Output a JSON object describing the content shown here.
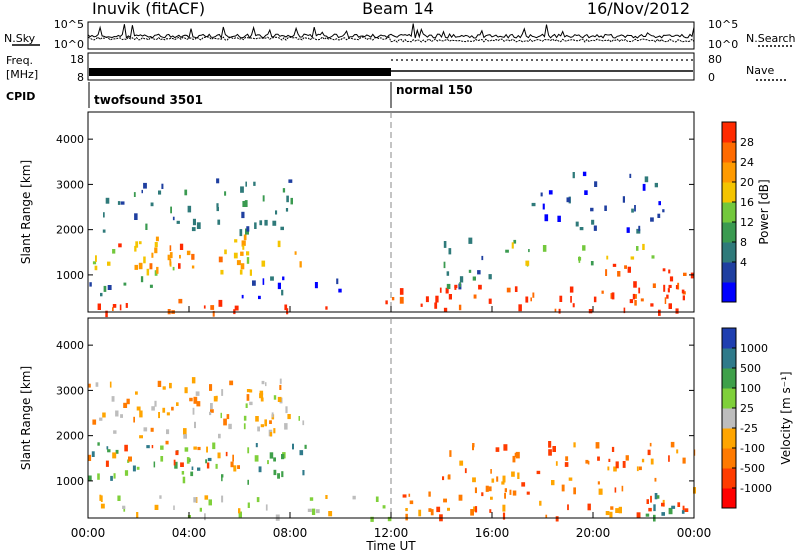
{
  "header": {
    "station": "Inuvik (fitACF)",
    "beam": "Beam 14",
    "date": "16/Nov/2012"
  },
  "top_panels": {
    "nsky_label": "N.Sky",
    "nsky_ticks": [
      "10^5",
      "10^0"
    ],
    "nsearch_label": "N.Search",
    "nsearch_ticks": [
      "10^5",
      "10^0"
    ],
    "freq_label_1": "Freq.",
    "freq_label_2": "[MHz]",
    "freq_ticks": [
      "18",
      "8"
    ],
    "nave_label": "Nave",
    "nave_ticks": [
      "80",
      "0"
    ],
    "cpid_label": "CPID",
    "cpid_segments": [
      {
        "label": "twofsound 3501",
        "start_hour": 0
      },
      {
        "label": "normal 150",
        "start_hour": 12
      }
    ]
  },
  "time_axis": {
    "label": "Time UT",
    "ticks": [
      "00:00",
      "04:00",
      "08:00",
      "12:00",
      "16:00",
      "20:00",
      "00:00"
    ]
  },
  "chart_data": [
    {
      "type": "heatmap",
      "title": "",
      "xlabel": "Time UT",
      "ylabel": "Slant Range [km]",
      "xlim": [
        0,
        24
      ],
      "ylim": [
        180,
        4600
      ],
      "yticks": [
        "1000",
        "2000",
        "3000",
        "4000"
      ],
      "colorbar": {
        "label": "Power [dB]",
        "ticks": [
          "28",
          "24",
          "20",
          "16",
          "12",
          "8",
          "4"
        ],
        "colors": [
          "#0000ff",
          "#1f3fa0",
          "#2f7a7a",
          "#3a9a50",
          "#73c83c",
          "#f4c400",
          "#ff9a00",
          "#ff6a00",
          "#ff2a00"
        ]
      },
      "regions": [
        {
          "t0": 0.0,
          "t1": 8.6,
          "r0": 1100,
          "r1": 1900,
          "level": 5
        },
        {
          "t0": 1.0,
          "t1": 5.5,
          "r0": 1200,
          "r1": 1700,
          "level": 7
        },
        {
          "t0": 0.0,
          "t1": 12.0,
          "r0": 200,
          "r1": 500,
          "level": 8
        },
        {
          "t0": 0.0,
          "t1": 3.0,
          "r0": 600,
          "r1": 1000,
          "level": 2
        },
        {
          "t0": 0.5,
          "t1": 8.2,
          "r0": 2000,
          "r1": 3200,
          "level": 2
        },
        {
          "t0": 6.0,
          "t1": 10.0,
          "r0": 500,
          "r1": 1000,
          "level": 1
        },
        {
          "t0": 12.0,
          "t1": 24.0,
          "r0": 200,
          "r1": 800,
          "level": 8
        },
        {
          "t0": 16.5,
          "t1": 22.5,
          "r0": 1300,
          "r1": 1800,
          "level": 4
        },
        {
          "t0": 20.0,
          "t1": 24.0,
          "r0": 500,
          "r1": 1250,
          "level": 8
        },
        {
          "t0": 17.5,
          "t1": 23.0,
          "r0": 2000,
          "r1": 3300,
          "level": 1
        },
        {
          "t0": 14.0,
          "t1": 16.0,
          "r0": 800,
          "r1": 1900,
          "level": 2
        }
      ]
    },
    {
      "type": "heatmap",
      "title": "",
      "xlabel": "Time UT",
      "ylabel": "Slant Range [km]",
      "xlim": [
        0,
        24
      ],
      "ylim": [
        180,
        4600
      ],
      "yticks": [
        "1000",
        "2000",
        "3000",
        "4000"
      ],
      "colorbar": {
        "label": "Velocity [m s⁻¹]",
        "ticks": [
          "1000",
          "500",
          "100",
          "25",
          "-25",
          "-100",
          "-500",
          "-1000"
        ],
        "colors": [
          "#ff0000",
          "#ff3c00",
          "#ff7a00",
          "#ffa500",
          "#bdbdbd",
          "#7fd03a",
          "#3fa04a",
          "#2f7a8a",
          "#1f3fb0"
        ]
      },
      "regions": [
        {
          "t0": 0.0,
          "t1": 8.6,
          "r0": 1000,
          "r1": 1900,
          "level": 6
        },
        {
          "t0": 0.0,
          "t1": 6.0,
          "r0": 1300,
          "r1": 1900,
          "level": 2
        },
        {
          "t0": 0.0,
          "t1": 12.0,
          "r0": 200,
          "r1": 700,
          "level": 4
        },
        {
          "t0": 0.0,
          "t1": 8.0,
          "r0": 2000,
          "r1": 3300,
          "level": 3
        },
        {
          "t0": 4.0,
          "t1": 8.6,
          "r0": 2200,
          "r1": 3000,
          "level": 4
        },
        {
          "t0": 12.0,
          "t1": 24.0,
          "r0": 200,
          "r1": 800,
          "level": 2
        },
        {
          "t0": 14.0,
          "t1": 24.0,
          "r0": 800,
          "r1": 1900,
          "level": 2
        },
        {
          "t0": 22.0,
          "t1": 24.0,
          "r0": 200,
          "r1": 1000,
          "level": 6
        }
      ]
    }
  ]
}
